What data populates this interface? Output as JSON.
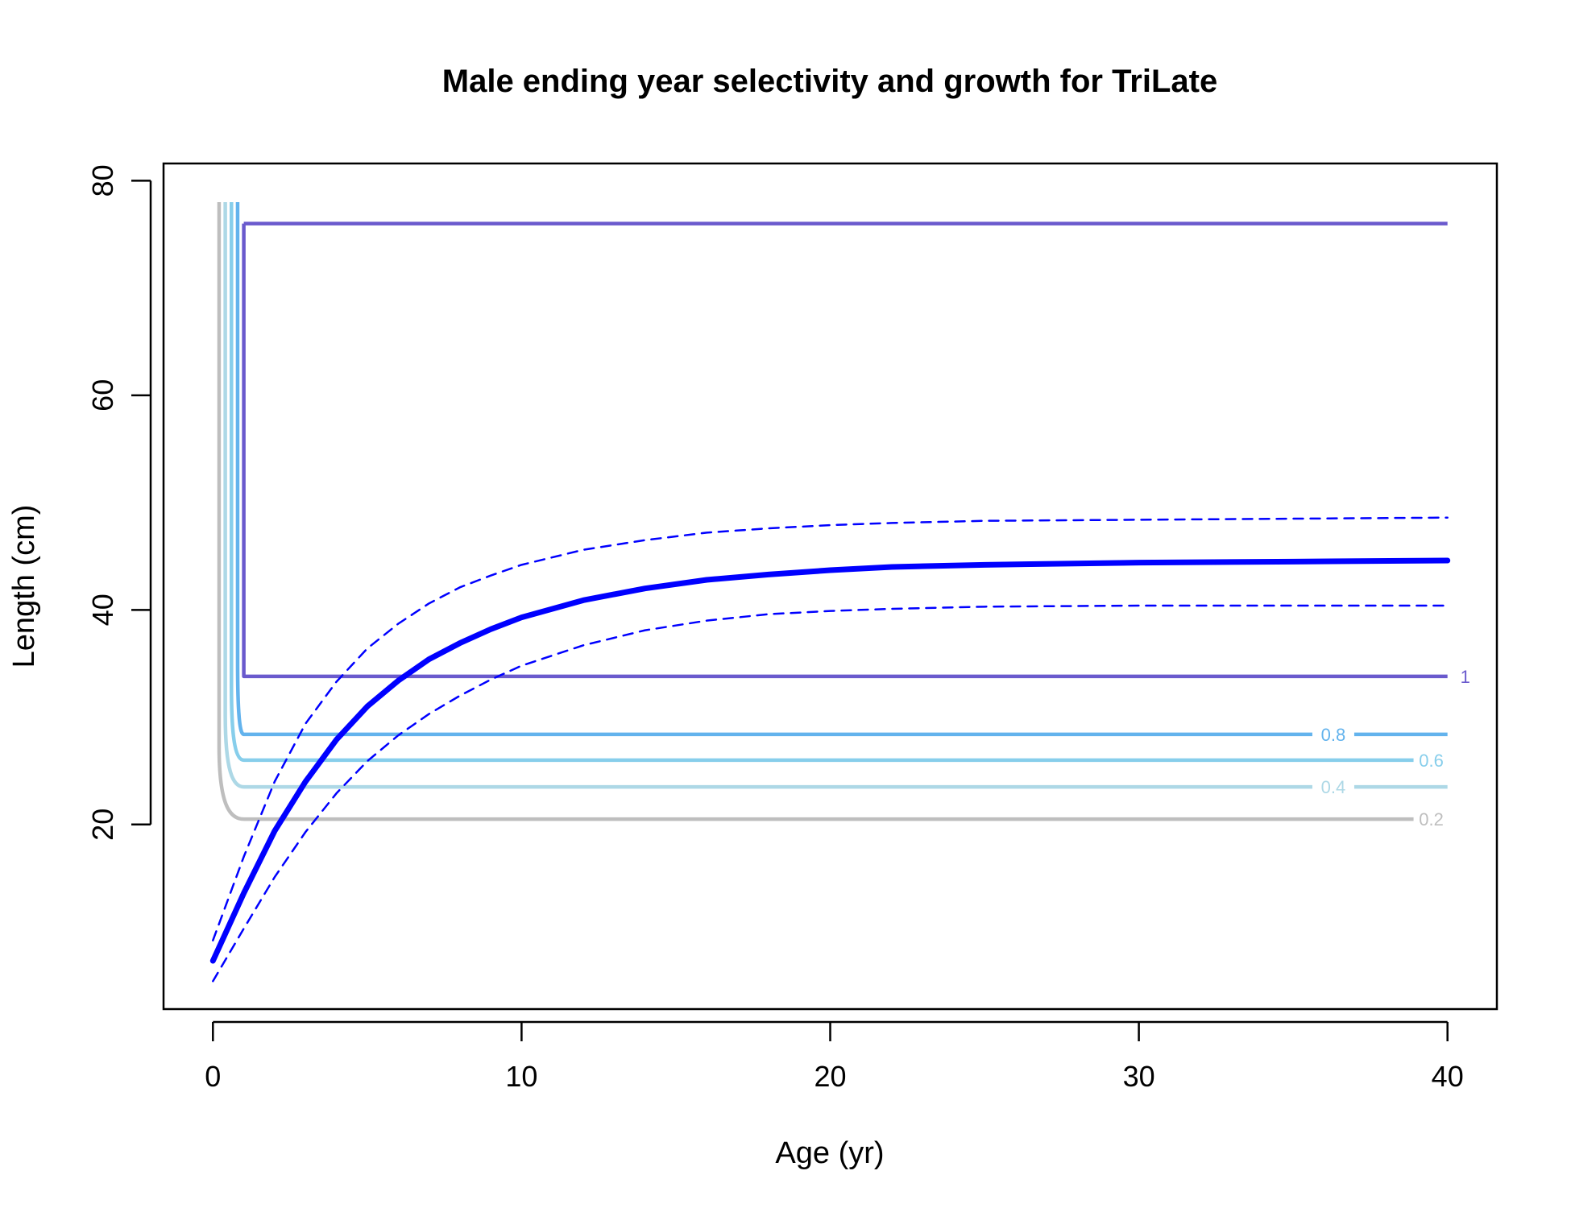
{
  "chart_data": {
    "type": "line",
    "title": "Male ending year selectivity and growth for TriLate",
    "xlabel": "Age (yr)",
    "ylabel": "Length (cm)",
    "xlim": [
      -1.6,
      41.6
    ],
    "ylim": [
      2.8,
      81.6
    ],
    "xticks": [
      0,
      10,
      20,
      30,
      40
    ],
    "yticks": [
      20,
      40,
      60,
      80
    ],
    "grid": false,
    "legend": "none",
    "contours": [
      {
        "label": "0.2",
        "color": "#BEBEBE",
        "ylow": 20.5,
        "yhigh": 78.0,
        "x_left": 0.2,
        "x_edge": 1.0,
        "x_end": 38.9
      },
      {
        "label": "0.4",
        "color": "#ADD8E6",
        "ylow": 23.5,
        "yhigh": 78.0,
        "x_left": 0.4,
        "x_edge": 1.0,
        "x_end": 40.0
      },
      {
        "label": "0.6",
        "color": "#87CEEB",
        "ylow": 26.0,
        "yhigh": 78.0,
        "x_left": 0.6,
        "x_edge": 1.0,
        "x_end": 38.9
      },
      {
        "label": "0.8",
        "color": "#63B3ED",
        "ylow": 28.4,
        "yhigh": 78.0,
        "x_left": 0.8,
        "x_edge": 1.0,
        "x_end": 40.0
      },
      {
        "label": "1",
        "color": "#6A5ACD",
        "ylow": 33.8,
        "yhigh": 76.0,
        "x_left": 1.0,
        "x_edge": 1.0,
        "x_end": 40.0
      }
    ],
    "series": [
      {
        "role": "mean",
        "color": "#0000FF",
        "x": [
          0,
          1,
          2,
          3,
          4,
          5,
          6,
          7,
          8,
          9,
          10,
          12,
          14,
          16,
          18,
          20,
          22,
          25,
          30,
          35,
          40
        ],
        "values": [
          7.3,
          13.6,
          19.4,
          24.0,
          27.9,
          31.0,
          33.4,
          35.4,
          36.9,
          38.2,
          39.3,
          40.9,
          42.0,
          42.8,
          43.3,
          43.7,
          44.0,
          44.2,
          44.4,
          44.5,
          44.6
        ]
      },
      {
        "role": "upper",
        "color": "#0000FF",
        "x": [
          0,
          1,
          2,
          3,
          4,
          5,
          6,
          7,
          8,
          9,
          10,
          12,
          14,
          16,
          18,
          20,
          22,
          25,
          30,
          35,
          40
        ],
        "values": [
          9.2,
          17.0,
          24.0,
          29.4,
          33.3,
          36.4,
          38.7,
          40.6,
          42.1,
          43.2,
          44.2,
          45.6,
          46.5,
          47.2,
          47.6,
          47.9,
          48.1,
          48.3,
          48.4,
          48.5,
          48.6
        ]
      },
      {
        "role": "lower",
        "color": "#0000FF",
        "x": [
          0,
          1,
          2,
          3,
          4,
          5,
          6,
          7,
          8,
          9,
          10,
          12,
          14,
          16,
          18,
          20,
          22,
          25,
          30,
          35,
          40
        ],
        "values": [
          5.4,
          10.3,
          15.1,
          19.3,
          22.9,
          25.9,
          28.3,
          30.3,
          32.0,
          33.5,
          34.8,
          36.7,
          38.1,
          39.0,
          39.6,
          39.9,
          40.1,
          40.3,
          40.4,
          40.4,
          40.4
        ]
      }
    ]
  }
}
